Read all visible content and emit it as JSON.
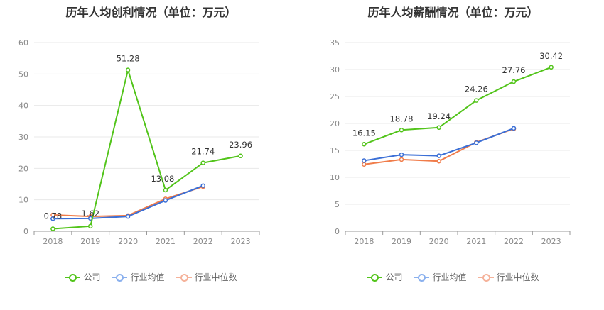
{
  "chart_data": [
    {
      "type": "line",
      "title": "历年人均创利情况（单位：万元）",
      "categories": [
        "2018",
        "2019",
        "2020",
        "2021",
        "2022",
        "2023"
      ],
      "ylim": [
        0,
        60
      ],
      "yticks": [
        0,
        10,
        20,
        30,
        40,
        50,
        60
      ],
      "series": [
        {
          "name": "公司",
          "color": "#52c41a",
          "values": [
            0.78,
            1.62,
            51.28,
            13.08,
            21.74,
            23.96
          ],
          "labels": [
            "0.78",
            "1.62",
            "51.28",
            "13.08",
            "21.74",
            "23.96"
          ]
        },
        {
          "name": "行业均值",
          "color": "#3b6fd6",
          "values": [
            4.0,
            4.1,
            4.7,
            9.8,
            14.5,
            null
          ]
        },
        {
          "name": "行业中位数",
          "color": "#f07c4a",
          "values": [
            5.2,
            4.7,
            5.0,
            10.3,
            14.2,
            null
          ]
        }
      ],
      "legend": [
        "公司",
        "行业均值",
        "行业中位数"
      ]
    },
    {
      "type": "line",
      "title": "历年人均薪酬情况（单位：万元）",
      "categories": [
        "2018",
        "2019",
        "2020",
        "2021",
        "2022",
        "2023"
      ],
      "ylim": [
        0,
        35
      ],
      "yticks": [
        0,
        5,
        10,
        15,
        20,
        25,
        30,
        35
      ],
      "series": [
        {
          "name": "公司",
          "color": "#52c41a",
          "values": [
            16.15,
            18.78,
            19.24,
            24.26,
            27.76,
            30.42
          ],
          "labels": [
            "16.15",
            "18.78",
            "19.24",
            "24.26",
            "27.76",
            "30.42"
          ]
        },
        {
          "name": "行业均值",
          "color": "#3b6fd6",
          "values": [
            13.1,
            14.2,
            14.0,
            16.4,
            19.1,
            null
          ]
        },
        {
          "name": "行业中位数",
          "color": "#f07c4a",
          "values": [
            12.4,
            13.3,
            13.0,
            16.5,
            19.0,
            null
          ]
        }
      ],
      "legend": [
        "公司",
        "行业均值",
        "行业中位数"
      ]
    }
  ],
  "legend_colors": {
    "公司": "#52c41a",
    "行业均值": "#8ab0ee",
    "行业中位数": "#f5b29a"
  }
}
